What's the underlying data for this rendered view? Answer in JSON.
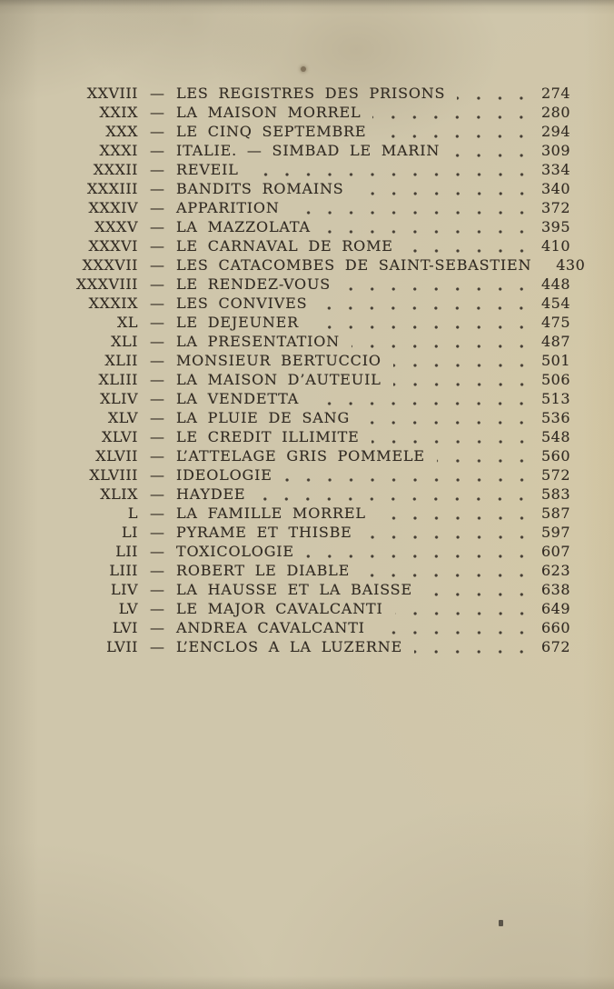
{
  "colors": {
    "paper": "#cfc6ab",
    "ink": "#322b23"
  },
  "document": {
    "separator": "—"
  },
  "toc": {
    "entries": [
      {
        "numeral": "XXVIII",
        "title": "LES REGISTRES DES PRISONS",
        "page": "274"
      },
      {
        "numeral": "XXIX",
        "title": "LA MAISON MORREL",
        "page": "280"
      },
      {
        "numeral": "XXX",
        "title": "LE CINQ SEPTEMBRE",
        "page": "294"
      },
      {
        "numeral": "XXXI",
        "title": "ITALIE. — SIMBAD LE MARIN",
        "page": "309"
      },
      {
        "numeral": "XXXII",
        "title": "REVEIL",
        "page": "334"
      },
      {
        "numeral": "XXXIII",
        "title": "BANDITS ROMAINS",
        "page": "340"
      },
      {
        "numeral": "XXXIV",
        "title": "APPARITION",
        "page": "372"
      },
      {
        "numeral": "XXXV",
        "title": "LA MAZZOLATA",
        "page": "395"
      },
      {
        "numeral": "XXXVI",
        "title": "LE CARNAVAL DE ROME",
        "page": "410"
      },
      {
        "numeral": "XXXVII",
        "title": "LES CATACOMBES DE SAINT-SEBASTIEN",
        "page": "430"
      },
      {
        "numeral": "XXXVIII",
        "title": "LE RENDEZ-VOUS",
        "page": "448"
      },
      {
        "numeral": "XXXIX",
        "title": "LES CONVIVES",
        "page": "454"
      },
      {
        "numeral": "XL",
        "title": "LE DEJEUNER",
        "page": "475"
      },
      {
        "numeral": "XLI",
        "title": "LA PRESENTATION",
        "page": "487"
      },
      {
        "numeral": "XLII",
        "title": "MONSIEUR BERTUCCIO",
        "page": "501"
      },
      {
        "numeral": "XLIII",
        "title": "LA MAISON D’AUTEUIL",
        "page": "506"
      },
      {
        "numeral": "XLIV",
        "title": "LA VENDETTA",
        "page": "513"
      },
      {
        "numeral": "XLV",
        "title": "LA PLUIE DE SANG",
        "page": "536"
      },
      {
        "numeral": "XLVI",
        "title": "LE CREDIT ILLIMITE",
        "page": "548"
      },
      {
        "numeral": "XLVII",
        "title": "L’ATTELAGE GRIS POMMELE",
        "page": "560"
      },
      {
        "numeral": "XLVIII",
        "title": "IDEOLOGIE",
        "page": "572"
      },
      {
        "numeral": "XLIX",
        "title": "HAYDEE",
        "page": "583"
      },
      {
        "numeral": "L",
        "title": "LA FAMILLE MORREL",
        "page": "587"
      },
      {
        "numeral": "LI",
        "title": "PYRAME ET THISBE",
        "page": "597"
      },
      {
        "numeral": "LII",
        "title": "TOXICOLOGIE",
        "page": "607"
      },
      {
        "numeral": "LIII",
        "title": "ROBERT LE DIABLE",
        "page": "623"
      },
      {
        "numeral": "LIV",
        "title": "LA HAUSSE ET LA BAISSE",
        "page": "638"
      },
      {
        "numeral": "LV",
        "title": "LE MAJOR CAVALCANTI",
        "page": "649"
      },
      {
        "numeral": "LVI",
        "title": "ANDREA CAVALCANTI",
        "page": "660"
      },
      {
        "numeral": "LVII",
        "title": "L’ENCLOS A LA LUZERNE",
        "page": "672"
      }
    ]
  }
}
